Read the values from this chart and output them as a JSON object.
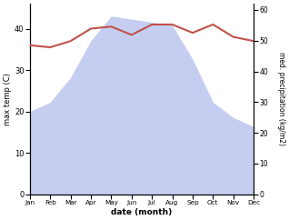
{
  "months": [
    "Jan",
    "Feb",
    "Mar",
    "Apr",
    "May",
    "Jun",
    "Jul",
    "Aug",
    "Sep",
    "Oct",
    "Nov",
    "Dec"
  ],
  "x": [
    1,
    2,
    3,
    4,
    5,
    6,
    7,
    8,
    9,
    10,
    11,
    12
  ],
  "temp": [
    36,
    35.5,
    37,
    40,
    40.5,
    38.5,
    41,
    41,
    39,
    41,
    38,
    37
  ],
  "precip": [
    27,
    30,
    38,
    50,
    58,
    57,
    56,
    55,
    44,
    30,
    25,
    22
  ],
  "temp_color": "#c0524a",
  "precip_fill_color": "#c5cef0",
  "left_ylabel": "max temp (C)",
  "right_ylabel": "med. precipitation (kg/m2)",
  "xlabel": "date (month)",
  "left_ylim": [
    0,
    46
  ],
  "right_ylim": [
    0,
    62
  ],
  "left_yticks": [
    0,
    10,
    20,
    30,
    40
  ],
  "right_yticks": [
    0,
    10,
    20,
    30,
    40,
    50,
    60
  ],
  "figsize": [
    3.18,
    2.42
  ],
  "dpi": 100
}
